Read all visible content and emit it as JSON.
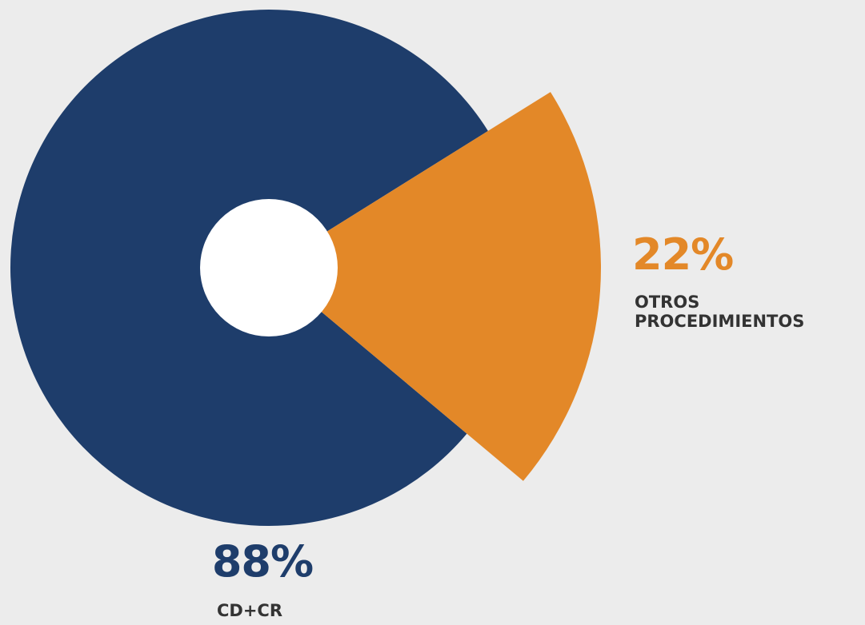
{
  "chart_data": {
    "type": "pie",
    "categories": [
      "CD+CR",
      "OTROS PROCEDIMIENTOS"
    ],
    "values": [
      88,
      22
    ],
    "value_labels": [
      "88%",
      "22%"
    ],
    "colors": [
      "#1e3d6b",
      "#e38828"
    ]
  }
}
